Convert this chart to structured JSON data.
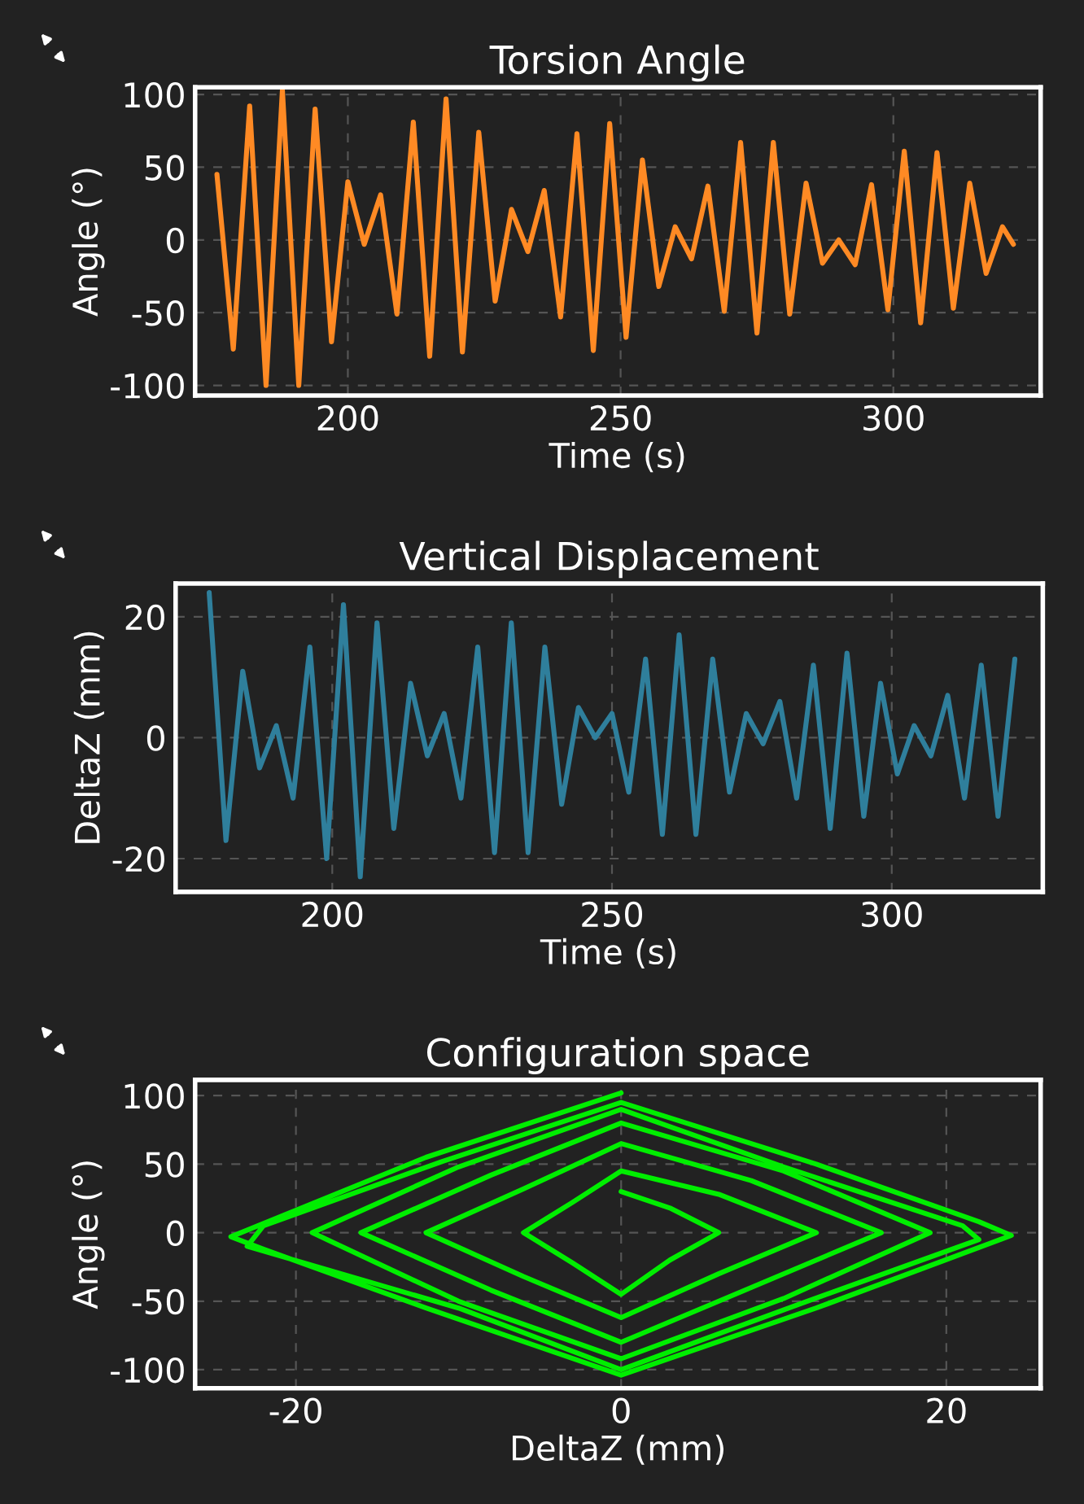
{
  "chart_data": [
    {
      "type": "line",
      "title": "Torsion Angle",
      "xlabel": "Time (s)",
      "ylabel": "Angle (°)",
      "xlim": [
        172,
        327
      ],
      "ylim": [
        -107,
        105
      ],
      "xticks": [
        200,
        250,
        300
      ],
      "yticks": [
        -100,
        -50,
        0,
        50,
        100
      ],
      "grid": true,
      "line_style": "solid",
      "series": [
        {
          "color": "#ff8a24",
          "x": [
            176,
            179,
            182,
            185,
            188,
            191,
            194,
            197,
            200,
            203,
            206,
            209,
            212,
            215,
            218,
            221,
            224,
            227,
            230,
            233,
            236,
            239,
            242,
            245,
            248,
            251,
            254,
            257,
            260,
            263,
            266,
            269,
            272,
            275,
            278,
            281,
            284,
            287,
            290,
            293,
            296,
            299,
            302,
            305,
            308,
            311,
            314,
            317,
            320,
            322
          ],
          "values": [
            45,
            -75,
            92,
            -100,
            103,
            -100,
            90,
            -70,
            40,
            -3,
            31,
            -51,
            81,
            -80,
            97,
            -77,
            74,
            -42,
            21,
            -8,
            34,
            -53,
            73,
            -76,
            80,
            -67,
            55,
            -32,
            9,
            -13,
            37,
            -49,
            67,
            -64,
            67,
            -51,
            39,
            -16,
            0,
            -17,
            38,
            -48,
            61,
            -57,
            60,
            -47,
            39,
            -23,
            9,
            -3
          ]
        }
      ]
    },
    {
      "type": "line",
      "title": "Vertical Displacement",
      "xlabel": "Time (s)",
      "ylabel": "DeltaZ (mm)",
      "xlim": [
        172,
        327
      ],
      "ylim": [
        -25.5,
        25.5
      ],
      "xticks": [
        200,
        250,
        300
      ],
      "yticks": [
        -20,
        0,
        20
      ],
      "grid": true,
      "line_style": "solid",
      "series": [
        {
          "color": "#2f7f9c",
          "x": [
            178,
            181,
            184,
            187,
            190,
            193,
            196,
            199,
            202,
            205,
            208,
            211,
            214,
            217,
            220,
            223,
            226,
            229,
            232,
            235,
            238,
            241,
            244,
            247,
            250,
            253,
            256,
            259,
            262,
            265,
            268,
            271,
            274,
            277,
            280,
            283,
            286,
            289,
            292,
            295,
            298,
            301,
            304,
            307,
            310,
            313,
            316,
            319,
            322
          ],
          "values": [
            24,
            -17,
            11,
            -5,
            2,
            -10,
            15,
            -20,
            22,
            -23,
            19,
            -15,
            9,
            -3,
            4,
            -10,
            15,
            -19,
            19,
            -19,
            15,
            -11,
            5,
            0,
            4,
            -9,
            13,
            -16,
            17,
            -16,
            13,
            -9,
            4,
            -1,
            6,
            -10,
            12,
            -15,
            14,
            -13,
            9,
            -6,
            2,
            -3,
            7,
            -10,
            12,
            -13,
            13
          ]
        }
      ]
    },
    {
      "type": "line",
      "title": "Configuration space",
      "xlabel": "DeltaZ (mm)",
      "ylabel": "Angle (°)",
      "xlim": [
        -26.2,
        25.8
      ],
      "ylim": [
        -113.5,
        111.5
      ],
      "xticks": [
        -20,
        0,
        20
      ],
      "yticks": [
        -100,
        -50,
        0,
        50,
        100
      ],
      "grid": true,
      "line_style": "solid",
      "series": [
        {
          "color": "#00ee00",
          "x": [
            0,
            -12,
            -24,
            -22,
            -12,
            0,
            12,
            24,
            22,
            12,
            0,
            -11,
            -22,
            -23,
            -10,
            0,
            11,
            22,
            21,
            10,
            0,
            -10,
            -19,
            -10,
            0,
            10,
            19,
            10,
            0,
            -8,
            -16,
            -8,
            0,
            8,
            16,
            8,
            0,
            -6,
            -12,
            -6,
            0,
            6,
            12,
            6,
            0,
            -3,
            -6,
            -3,
            0,
            3,
            6,
            3,
            0
          ],
          "values": [
            102,
            55,
            -3,
            -12,
            -55,
            -104,
            -55,
            -2,
            8,
            50,
            95,
            52,
            5,
            -10,
            -55,
            -100,
            -52,
            -5,
            5,
            48,
            90,
            48,
            0,
            -50,
            -92,
            -48,
            0,
            45,
            80,
            42,
            0,
            -42,
            -80,
            -40,
            0,
            38,
            65,
            32,
            0,
            -32,
            -62,
            -30,
            0,
            28,
            45,
            22,
            0,
            -22,
            -45,
            -20,
            0,
            18,
            30
          ]
        }
      ]
    }
  ]
}
